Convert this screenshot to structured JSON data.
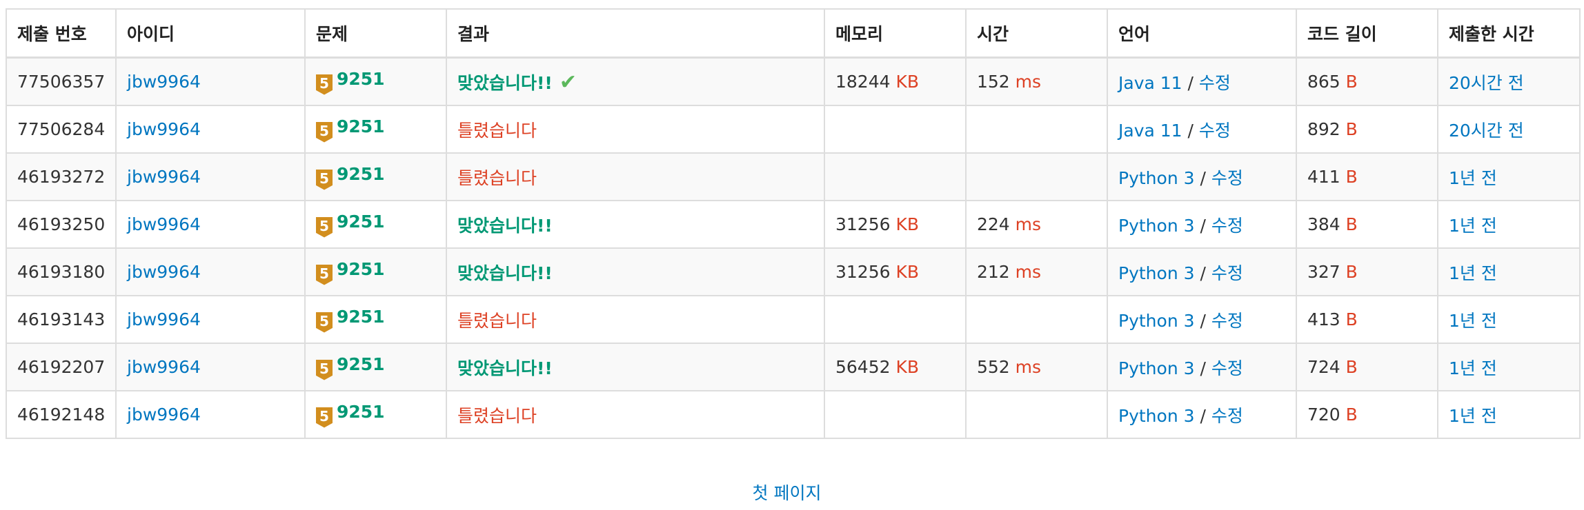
{
  "colors": {
    "link": "#0076c0",
    "accepted": "#009874",
    "wrong": "#dd4124",
    "unit": "#dd4124",
    "tier_badge": "#d28e1e",
    "check": "#5cb85c"
  },
  "columns": [
    "제출 번호",
    "아이디",
    "문제",
    "결과",
    "메모리",
    "시간",
    "언어",
    "코드 길이",
    "제출한 시간"
  ],
  "rows": [
    {
      "id": "77506357",
      "user": "jbw9964",
      "tier": "5",
      "problem": "9251",
      "result": "맞았습니다!!",
      "accepted": true,
      "check": "✔",
      "memory": "18244",
      "memory_unit": "KB",
      "time": "152",
      "time_unit": "ms",
      "language": "Java 11",
      "sep": " / ",
      "edit": "수정",
      "length": "865",
      "length_unit": "B",
      "submitted": "20시간 전"
    },
    {
      "id": "77506284",
      "user": "jbw9964",
      "tier": "5",
      "problem": "9251",
      "result": "틀렸습니다",
      "accepted": false,
      "memory": "",
      "memory_unit": "",
      "time": "",
      "time_unit": "",
      "language": "Java 11",
      "sep": " / ",
      "edit": "수정",
      "length": "892",
      "length_unit": "B",
      "submitted": "20시간 전"
    },
    {
      "id": "46193272",
      "user": "jbw9964",
      "tier": "5",
      "problem": "9251",
      "result": "틀렸습니다",
      "accepted": false,
      "memory": "",
      "memory_unit": "",
      "time": "",
      "time_unit": "",
      "language": "Python 3",
      "sep": " / ",
      "edit": "수정",
      "length": "411",
      "length_unit": "B",
      "submitted": "1년 전"
    },
    {
      "id": "46193250",
      "user": "jbw9964",
      "tier": "5",
      "problem": "9251",
      "result": "맞았습니다!!",
      "accepted": true,
      "memory": "31256",
      "memory_unit": "KB",
      "time": "224",
      "time_unit": "ms",
      "language": "Python 3",
      "sep": " / ",
      "edit": "수정",
      "length": "384",
      "length_unit": "B",
      "submitted": "1년 전"
    },
    {
      "id": "46193180",
      "user": "jbw9964",
      "tier": "5",
      "problem": "9251",
      "result": "맞았습니다!!",
      "accepted": true,
      "memory": "31256",
      "memory_unit": "KB",
      "time": "212",
      "time_unit": "ms",
      "language": "Python 3",
      "sep": " / ",
      "edit": "수정",
      "length": "327",
      "length_unit": "B",
      "submitted": "1년 전"
    },
    {
      "id": "46193143",
      "user": "jbw9964",
      "tier": "5",
      "problem": "9251",
      "result": "틀렸습니다",
      "accepted": false,
      "memory": "",
      "memory_unit": "",
      "time": "",
      "time_unit": "",
      "language": "Python 3",
      "sep": " / ",
      "edit": "수정",
      "length": "413",
      "length_unit": "B",
      "submitted": "1년 전"
    },
    {
      "id": "46192207",
      "user": "jbw9964",
      "tier": "5",
      "problem": "9251",
      "result": "맞았습니다!!",
      "accepted": true,
      "memory": "56452",
      "memory_unit": "KB",
      "time": "552",
      "time_unit": "ms",
      "language": "Python 3",
      "sep": " / ",
      "edit": "수정",
      "length": "724",
      "length_unit": "B",
      "submitted": "1년 전"
    },
    {
      "id": "46192148",
      "user": "jbw9964",
      "tier": "5",
      "problem": "9251",
      "result": "틀렸습니다",
      "accepted": false,
      "memory": "",
      "memory_unit": "",
      "time": "",
      "time_unit": "",
      "language": "Python 3",
      "sep": " / ",
      "edit": "수정",
      "length": "720",
      "length_unit": "B",
      "submitted": "1년 전"
    }
  ],
  "pagination": {
    "first_page": "첫 페이지"
  }
}
